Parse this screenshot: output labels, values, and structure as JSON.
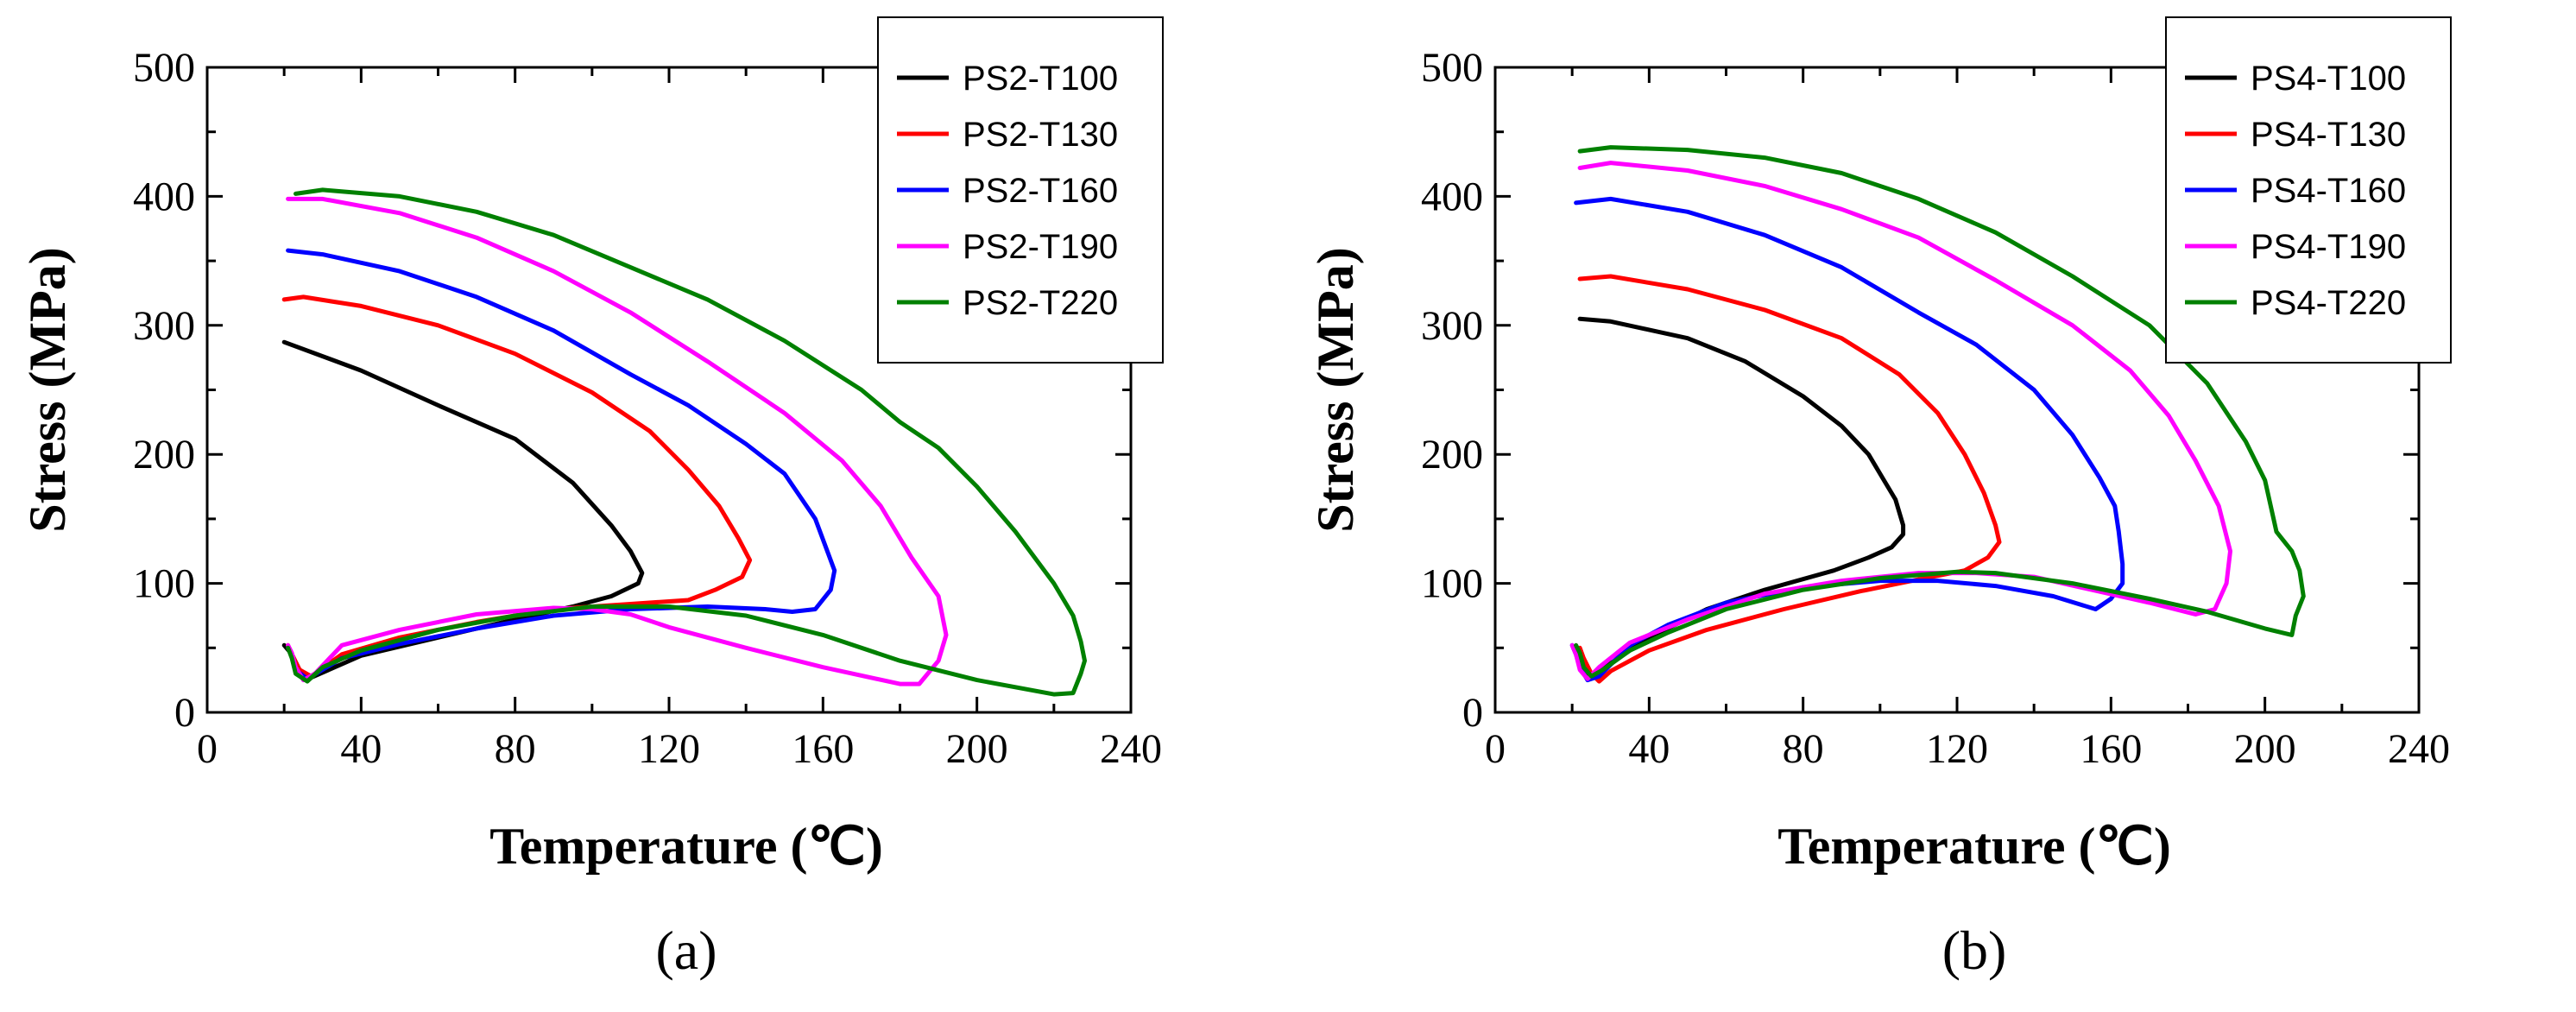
{
  "chart_data": [
    {
      "type": "line",
      "panel_label": "(a)",
      "xlabel": "Temperature (℃)",
      "ylabel": "Stress (MPa)",
      "xlim": [
        0,
        240
      ],
      "ylim": [
        0,
        500
      ],
      "xticks": [
        "0",
        "40",
        "80",
        "120",
        "160",
        "200",
        "240"
      ],
      "yticks": [
        "0",
        "100",
        "200",
        "300",
        "400",
        "500"
      ],
      "legend_position": "top-right",
      "series": [
        {
          "name": "PS2-T100",
          "color": "#000000",
          "points": [
            [
              20,
              287
            ],
            [
              40,
              265
            ],
            [
              60,
              238
            ],
            [
              80,
              212
            ],
            [
              95,
              178
            ],
            [
              105,
              145
            ],
            [
              110,
              125
            ],
            [
              113,
              108
            ],
            [
              112,
              100
            ],
            [
              105,
              90
            ],
            [
              95,
              82
            ],
            [
              80,
              72
            ],
            [
              60,
              58
            ],
            [
              40,
              44
            ],
            [
              27,
              27
            ],
            [
              24,
              33
            ],
            [
              22,
              45
            ],
            [
              20,
              52
            ]
          ]
        },
        {
          "name": "PS2-T130",
          "color": "#ff0000",
          "points": [
            [
              20,
              320
            ],
            [
              25,
              322
            ],
            [
              40,
              315
            ],
            [
              60,
              300
            ],
            [
              80,
              278
            ],
            [
              100,
              248
            ],
            [
              115,
              218
            ],
            [
              125,
              188
            ],
            [
              133,
              160
            ],
            [
              138,
              135
            ],
            [
              141,
              118
            ],
            [
              139,
              105
            ],
            [
              132,
              95
            ],
            [
              125,
              87
            ],
            [
              110,
              84
            ],
            [
              90,
              80
            ],
            [
              70,
              70
            ],
            [
              50,
              58
            ],
            [
              35,
              45
            ],
            [
              27,
              28
            ],
            [
              24,
              33
            ],
            [
              22,
              45
            ],
            [
              21,
              52
            ]
          ]
        },
        {
          "name": "PS2-T160",
          "color": "#0000ff",
          "points": [
            [
              21,
              358
            ],
            [
              30,
              355
            ],
            [
              50,
              342
            ],
            [
              70,
              322
            ],
            [
              90,
              296
            ],
            [
              110,
              262
            ],
            [
              125,
              238
            ],
            [
              140,
              208
            ],
            [
              150,
              185
            ],
            [
              158,
              150
            ],
            [
              163,
              110
            ],
            [
              162,
              95
            ],
            [
              158,
              80
            ],
            [
              152,
              78
            ],
            [
              145,
              80
            ],
            [
              130,
              82
            ],
            [
              110,
              80
            ],
            [
              90,
              75
            ],
            [
              70,
              65
            ],
            [
              50,
              53
            ],
            [
              35,
              42
            ],
            [
              26,
              26
            ],
            [
              23,
              33
            ],
            [
              22,
              45
            ],
            [
              21,
              50
            ]
          ]
        },
        {
          "name": "PS2-T190",
          "color": "#ff00ff",
          "points": [
            [
              21,
              398
            ],
            [
              30,
              398
            ],
            [
              50,
              387
            ],
            [
              70,
              368
            ],
            [
              90,
              342
            ],
            [
              110,
              310
            ],
            [
              130,
              272
            ],
            [
              150,
              232
            ],
            [
              165,
              195
            ],
            [
              175,
              160
            ],
            [
              183,
              120
            ],
            [
              190,
              90
            ],
            [
              192,
              60
            ],
            [
              190,
              40
            ],
            [
              185,
              22
            ],
            [
              180,
              22
            ],
            [
              160,
              35
            ],
            [
              140,
              50
            ],
            [
              120,
              66
            ],
            [
              110,
              76
            ],
            [
              100,
              80
            ],
            [
              90,
              81
            ],
            [
              70,
              76
            ],
            [
              50,
              64
            ],
            [
              35,
              52
            ],
            [
              28,
              30
            ],
            [
              25,
              25
            ],
            [
              23,
              35
            ],
            [
              22,
              46
            ],
            [
              21,
              52
            ]
          ]
        },
        {
          "name": "PS2-T220",
          "color": "#008000",
          "points": [
            [
              23,
              402
            ],
            [
              30,
              405
            ],
            [
              50,
              400
            ],
            [
              70,
              388
            ],
            [
              90,
              370
            ],
            [
              110,
              345
            ],
            [
              130,
              320
            ],
            [
              150,
              288
            ],
            [
              170,
              250
            ],
            [
              180,
              225
            ],
            [
              190,
              205
            ],
            [
              200,
              175
            ],
            [
              210,
              140
            ],
            [
              220,
              100
            ],
            [
              225,
              75
            ],
            [
              227,
              55
            ],
            [
              228,
              40
            ],
            [
              227,
              30
            ],
            [
              225,
              15
            ],
            [
              220,
              14
            ],
            [
              200,
              25
            ],
            [
              180,
              40
            ],
            [
              160,
              60
            ],
            [
              140,
              75
            ],
            [
              120,
              82
            ],
            [
              100,
              82
            ],
            [
              80,
              75
            ],
            [
              60,
              64
            ],
            [
              40,
              48
            ],
            [
              30,
              35
            ],
            [
              26,
              24
            ],
            [
              23,
              30
            ],
            [
              22,
              42
            ],
            [
              21,
              50
            ]
          ]
        }
      ]
    },
    {
      "type": "line",
      "panel_label": "(b)",
      "xlabel": "Temperature (℃)",
      "ylabel": "Stress (MPa)",
      "xlim": [
        0,
        240
      ],
      "ylim": [
        0,
        500
      ],
      "xticks": [
        "0",
        "40",
        "80",
        "120",
        "160",
        "200",
        "240"
      ],
      "yticks": [
        "0",
        "100",
        "200",
        "300",
        "400",
        "500"
      ],
      "legend_position": "top-right",
      "series": [
        {
          "name": "PS4-T100",
          "color": "#000000",
          "points": [
            [
              22,
              305
            ],
            [
              30,
              303
            ],
            [
              50,
              290
            ],
            [
              65,
              272
            ],
            [
              80,
              245
            ],
            [
              90,
              222
            ],
            [
              97,
              200
            ],
            [
              101,
              180
            ],
            [
              104,
              165
            ],
            [
              106,
              145
            ],
            [
              106,
              138
            ],
            [
              103,
              128
            ],
            [
              97,
              120
            ],
            [
              88,
              110
            ],
            [
              70,
              95
            ],
            [
              55,
              80
            ],
            [
              40,
              58
            ],
            [
              30,
              38
            ],
            [
              25,
              28
            ],
            [
              23,
              33
            ],
            [
              22,
              42
            ],
            [
              21,
              50
            ]
          ]
        },
        {
          "name": "PS4-T130",
          "color": "#ff0000",
          "points": [
            [
              22,
              336
            ],
            [
              30,
              338
            ],
            [
              50,
              328
            ],
            [
              70,
              312
            ],
            [
              90,
              290
            ],
            [
              105,
              262
            ],
            [
              115,
              232
            ],
            [
              122,
              200
            ],
            [
              127,
              170
            ],
            [
              130,
              145
            ],
            [
              131,
              132
            ],
            [
              128,
              120
            ],
            [
              122,
              110
            ],
            [
              110,
              103
            ],
            [
              95,
              94
            ],
            [
              75,
              80
            ],
            [
              55,
              64
            ],
            [
              40,
              48
            ],
            [
              30,
              32
            ],
            [
              27,
              24
            ],
            [
              25,
              30
            ],
            [
              23,
              42
            ],
            [
              22,
              50
            ]
          ]
        },
        {
          "name": "PS4-T160",
          "color": "#0000ff",
          "points": [
            [
              21,
              395
            ],
            [
              30,
              398
            ],
            [
              50,
              388
            ],
            [
              70,
              370
            ],
            [
              90,
              345
            ],
            [
              110,
              310
            ],
            [
              125,
              285
            ],
            [
              140,
              250
            ],
            [
              150,
              215
            ],
            [
              157,
              182
            ],
            [
              161,
              160
            ],
            [
              162,
              140
            ],
            [
              163,
              115
            ],
            [
              163,
              100
            ],
            [
              160,
              88
            ],
            [
              156,
              80
            ],
            [
              145,
              90
            ],
            [
              130,
              98
            ],
            [
              115,
              102
            ],
            [
              100,
              102
            ],
            [
              80,
              97
            ],
            [
              60,
              85
            ],
            [
              45,
              68
            ],
            [
              35,
              52
            ],
            [
              27,
              28
            ],
            [
              24,
              25
            ],
            [
              22,
              35
            ],
            [
              21,
              45
            ],
            [
              20,
              52
            ]
          ]
        },
        {
          "name": "PS4-T190",
          "color": "#ff00ff",
          "points": [
            [
              22,
              422
            ],
            [
              30,
              426
            ],
            [
              50,
              420
            ],
            [
              70,
              408
            ],
            [
              90,
              390
            ],
            [
              110,
              368
            ],
            [
              130,
              335
            ],
            [
              150,
              300
            ],
            [
              165,
              265
            ],
            [
              175,
              230
            ],
            [
              182,
              195
            ],
            [
              188,
              160
            ],
            [
              191,
              125
            ],
            [
              190,
              100
            ],
            [
              187,
              80
            ],
            [
              182,
              76
            ],
            [
              170,
              85
            ],
            [
              155,
              95
            ],
            [
              140,
              105
            ],
            [
              125,
              108
            ],
            [
              110,
              108
            ],
            [
              90,
              102
            ],
            [
              70,
              92
            ],
            [
              50,
              72
            ],
            [
              35,
              54
            ],
            [
              27,
              35
            ],
            [
              24,
              26
            ],
            [
              22,
              33
            ],
            [
              21,
              45
            ],
            [
              20,
              52
            ]
          ]
        },
        {
          "name": "PS4-T220",
          "color": "#008000",
          "points": [
            [
              22,
              435
            ],
            [
              30,
              438
            ],
            [
              50,
              436
            ],
            [
              70,
              430
            ],
            [
              90,
              418
            ],
            [
              110,
              398
            ],
            [
              130,
              372
            ],
            [
              150,
              338
            ],
            [
              170,
              300
            ],
            [
              185,
              255
            ],
            [
              195,
              210
            ],
            [
              200,
              180
            ],
            [
              203,
              140
            ],
            [
              207,
              125
            ],
            [
              209,
              110
            ],
            [
              210,
              90
            ],
            [
              208,
              75
            ],
            [
              207,
              60
            ],
            [
              200,
              65
            ],
            [
              185,
              78
            ],
            [
              170,
              88
            ],
            [
              150,
              100
            ],
            [
              130,
              108
            ],
            [
              120,
              109
            ],
            [
              100,
              104
            ],
            [
              80,
              95
            ],
            [
              60,
              80
            ],
            [
              45,
              62
            ],
            [
              35,
              48
            ],
            [
              28,
              33
            ],
            [
              25,
              28
            ],
            [
              23,
              35
            ],
            [
              22,
              46
            ],
            [
              21,
              52
            ]
          ]
        }
      ]
    }
  ]
}
